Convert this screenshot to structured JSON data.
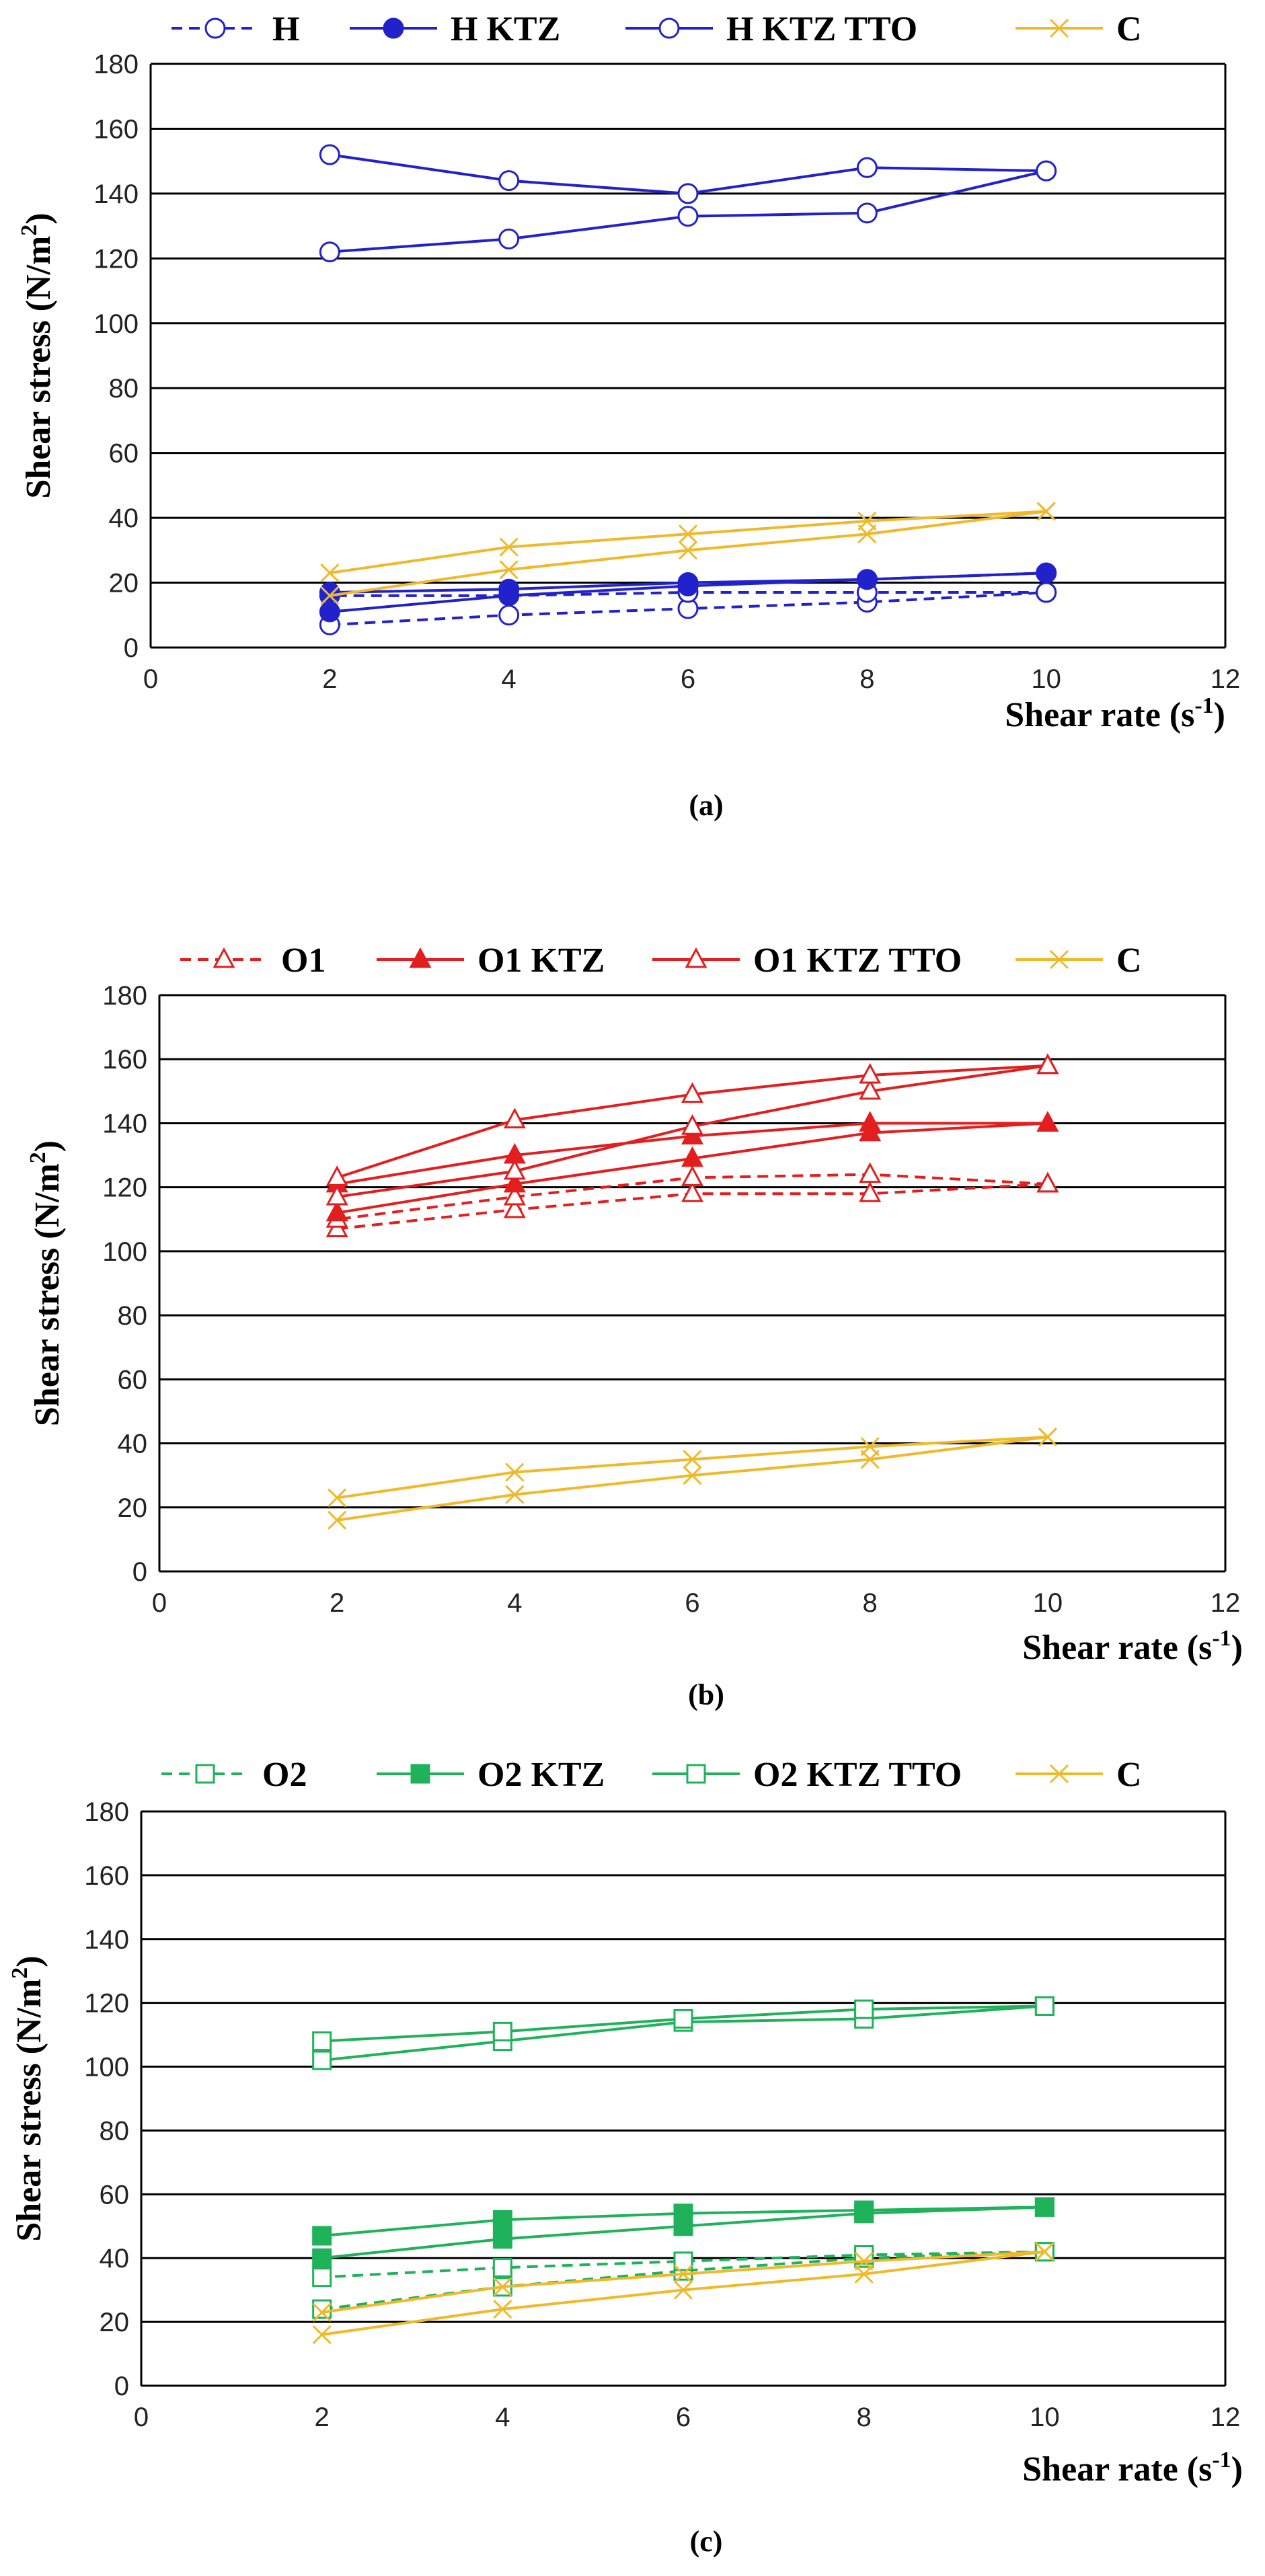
{
  "colors": {
    "blue": "#2222cc",
    "red": "#e21e1e",
    "green": "#1fb25a",
    "yellow": "#f0b92a",
    "grid": "#000000"
  },
  "chart_data": [
    {
      "type": "line",
      "caption": "(a)",
      "xlabel": "Shear rate (s",
      "xlabel_sup": "-1",
      "xlabel_end": ")",
      "ylabel": "Shear stress (N/m",
      "ylabel_sup": "2",
      "ylabel_end": ")",
      "xlim": [
        0,
        12
      ],
      "ylim": [
        0,
        180
      ],
      "xticks": [
        "0",
        "2",
        "4",
        "6",
        "8",
        "10",
        "12"
      ],
      "yticks": [
        "0",
        "20",
        "40",
        "60",
        "80",
        "100",
        "120",
        "140",
        "160",
        "180"
      ],
      "series": [
        {
          "name": "H",
          "color": "#2222cc",
          "marker": "circle-open",
          "dash": true,
          "up": [
            [
              2,
              7
            ],
            [
              4,
              10
            ],
            [
              6,
              12
            ],
            [
              8,
              14
            ],
            [
              10,
              17
            ]
          ],
          "down": [
            [
              10,
              17
            ],
            [
              8,
              17
            ],
            [
              6,
              17
            ],
            [
              4,
              16
            ],
            [
              2,
              16
            ]
          ]
        },
        {
          "name": "H KTZ",
          "color": "#2222cc",
          "marker": "circle-filled",
          "dash": false,
          "up": [
            [
              2,
              11
            ],
            [
              4,
              16
            ],
            [
              6,
              19
            ],
            [
              8,
              21
            ],
            [
              10,
              23
            ]
          ],
          "down": [
            [
              10,
              23
            ],
            [
              8,
              21
            ],
            [
              6,
              20
            ],
            [
              4,
              18
            ],
            [
              2,
              17
            ]
          ]
        },
        {
          "name": "H KTZ TTO",
          "color": "#2222cc",
          "marker": "circle-open",
          "dash": false,
          "up": [
            [
              2,
              122
            ],
            [
              4,
              126
            ],
            [
              6,
              133
            ],
            [
              8,
              134
            ],
            [
              10,
              147
            ]
          ],
          "down": [
            [
              10,
              147
            ],
            [
              8,
              148
            ],
            [
              6,
              140
            ],
            [
              4,
              144
            ],
            [
              2,
              152
            ]
          ]
        },
        {
          "name": "C",
          "color": "#f0b92a",
          "marker": "x",
          "dash": false,
          "up": [
            [
              2,
              16
            ],
            [
              4,
              24
            ],
            [
              6,
              30
            ],
            [
              8,
              35
            ],
            [
              10,
              42
            ]
          ],
          "down": [
            [
              10,
              42
            ],
            [
              8,
              39
            ],
            [
              6,
              35
            ],
            [
              4,
              31
            ],
            [
              2,
              23
            ]
          ]
        }
      ]
    },
    {
      "type": "line",
      "caption": "(b)",
      "xlabel": "Shear rate (s",
      "xlabel_sup": "-1",
      "xlabel_end": ")",
      "ylabel": "Shear stress (N/m",
      "ylabel_sup": "2",
      "ylabel_end": ")",
      "xlim": [
        0,
        12
      ],
      "ylim": [
        0,
        180
      ],
      "xticks": [
        "0",
        "2",
        "4",
        "6",
        "8",
        "10",
        "12"
      ],
      "yticks": [
        "0",
        "20",
        "40",
        "60",
        "80",
        "100",
        "120",
        "140",
        "160",
        "180"
      ],
      "series": [
        {
          "name": "O1",
          "color": "#e21e1e",
          "marker": "triangle-open",
          "dash": true,
          "up": [
            [
              2,
              107
            ],
            [
              4,
              113
            ],
            [
              6,
              118
            ],
            [
              8,
              118
            ],
            [
              10,
              121
            ]
          ],
          "down": [
            [
              10,
              121
            ],
            [
              8,
              124
            ],
            [
              6,
              123
            ],
            [
              4,
              117
            ],
            [
              2,
              110
            ]
          ]
        },
        {
          "name": "O1 KTZ",
          "color": "#e21e1e",
          "marker": "triangle-filled",
          "dash": false,
          "up": [
            [
              2,
              112
            ],
            [
              4,
              121
            ],
            [
              6,
              129
            ],
            [
              8,
              137
            ],
            [
              10,
              140
            ]
          ],
          "down": [
            [
              10,
              140
            ],
            [
              8,
              140
            ],
            [
              6,
              136
            ],
            [
              4,
              130
            ],
            [
              2,
              121
            ]
          ]
        },
        {
          "name": "O1 KTZ TTO",
          "color": "#e21e1e",
          "marker": "triangle-open",
          "dash": false,
          "up": [
            [
              2,
              117
            ],
            [
              4,
              125
            ],
            [
              6,
              139
            ],
            [
              8,
              150
            ],
            [
              10,
              158
            ]
          ],
          "down": [
            [
              10,
              158
            ],
            [
              8,
              155
            ],
            [
              6,
              149
            ],
            [
              4,
              141
            ],
            [
              2,
              123
            ]
          ]
        },
        {
          "name": "C",
          "color": "#f0b92a",
          "marker": "x",
          "dash": false,
          "up": [
            [
              2,
              16
            ],
            [
              4,
              24
            ],
            [
              6,
              30
            ],
            [
              8,
              35
            ],
            [
              10,
              42
            ]
          ],
          "down": [
            [
              10,
              42
            ],
            [
              8,
              39
            ],
            [
              6,
              35
            ],
            [
              4,
              31
            ],
            [
              2,
              23
            ]
          ]
        }
      ]
    },
    {
      "type": "line",
      "caption": "(c)",
      "xlabel": "Shear rate (s",
      "xlabel_sup": "-1",
      "xlabel_end": ")",
      "ylabel": "Shear stress (N/m",
      "ylabel_sup": "2",
      "ylabel_end": ")",
      "xlim": [
        0,
        12
      ],
      "ylim": [
        0,
        180
      ],
      "xticks": [
        "0",
        "2",
        "4",
        "6",
        "8",
        "10",
        "12"
      ],
      "yticks": [
        "0",
        "20",
        "40",
        "60",
        "80",
        "100",
        "120",
        "140",
        "160",
        "180"
      ],
      "series": [
        {
          "name": "O2",
          "color": "#1fb25a",
          "marker": "square-open",
          "dash": true,
          "up": [
            [
              2,
              24
            ],
            [
              4,
              31
            ],
            [
              6,
              36
            ],
            [
              8,
              40
            ],
            [
              10,
              42
            ]
          ],
          "down": [
            [
              10,
              42
            ],
            [
              8,
              41
            ],
            [
              6,
              39
            ],
            [
              4,
              37
            ],
            [
              2,
              34
            ]
          ]
        },
        {
          "name": "O2 KTZ",
          "color": "#1fb25a",
          "marker": "square-filled",
          "dash": false,
          "up": [
            [
              2,
              40
            ],
            [
              4,
              46
            ],
            [
              6,
              50
            ],
            [
              8,
              54
            ],
            [
              10,
              56
            ]
          ],
          "down": [
            [
              10,
              56
            ],
            [
              8,
              55
            ],
            [
              6,
              54
            ],
            [
              4,
              52
            ],
            [
              2,
              47
            ]
          ]
        },
        {
          "name": "O2 KTZ TTO",
          "color": "#1fb25a",
          "marker": "square-open",
          "dash": false,
          "up": [
            [
              2,
              102
            ],
            [
              4,
              108
            ],
            [
              6,
              114
            ],
            [
              8,
              115
            ],
            [
              10,
              119
            ]
          ],
          "down": [
            [
              10,
              119
            ],
            [
              8,
              118
            ],
            [
              6,
              115
            ],
            [
              4,
              111
            ],
            [
              2,
              108
            ]
          ]
        },
        {
          "name": "C",
          "color": "#f0b92a",
          "marker": "x",
          "dash": false,
          "up": [
            [
              2,
              16
            ],
            [
              4,
              24
            ],
            [
              6,
              30
            ],
            [
              8,
              35
            ],
            [
              10,
              42
            ]
          ],
          "down": [
            [
              10,
              42
            ],
            [
              8,
              39
            ],
            [
              6,
              35
            ],
            [
              4,
              31
            ],
            [
              2,
              23
            ]
          ]
        }
      ]
    }
  ]
}
